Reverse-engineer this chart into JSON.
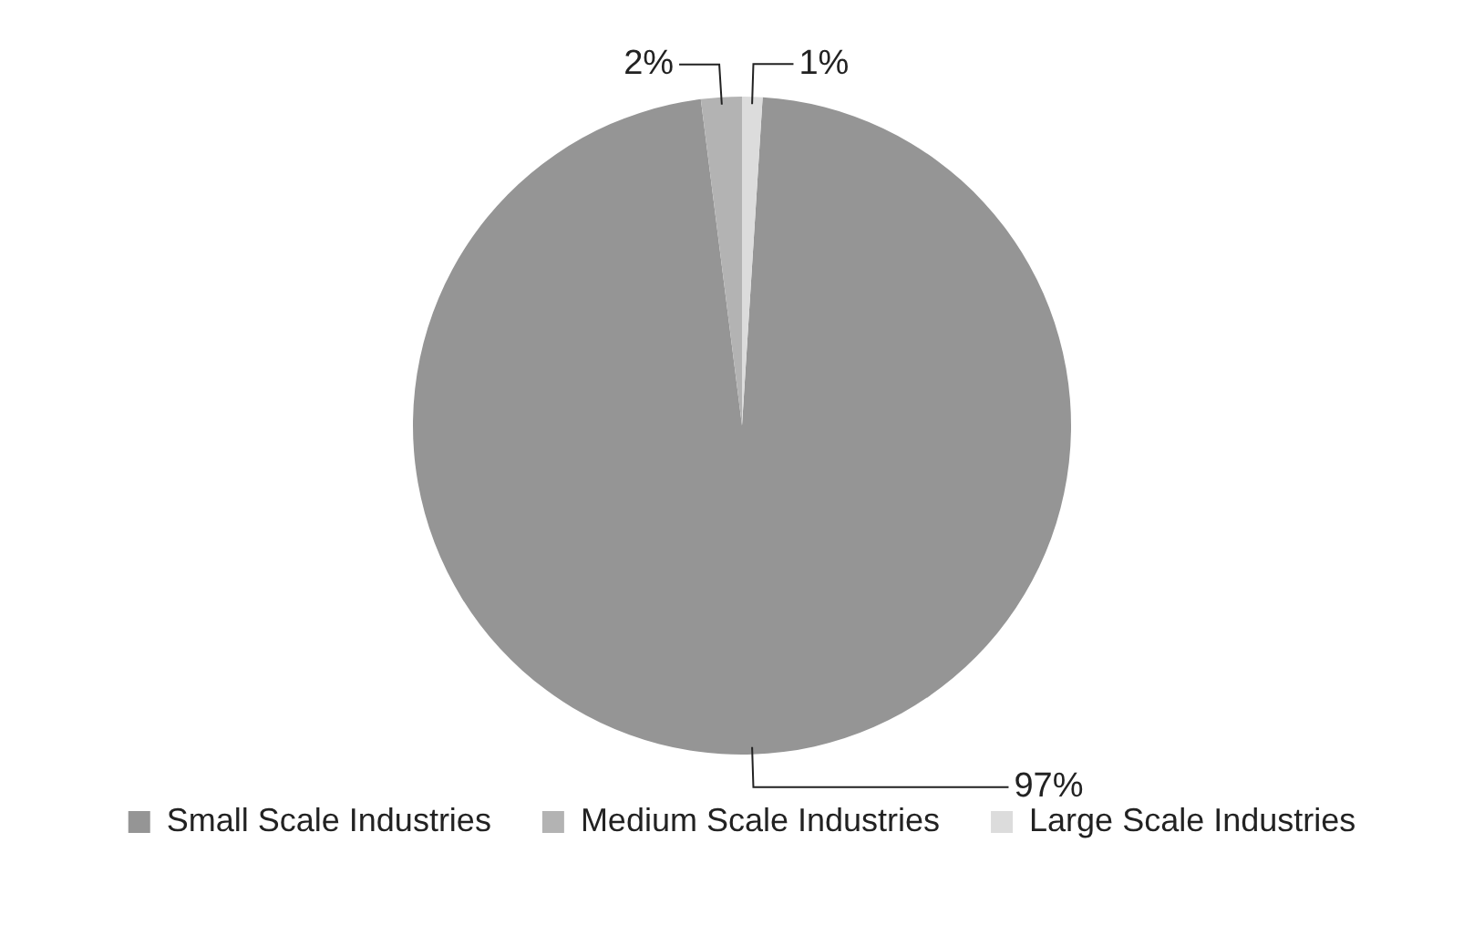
{
  "chart_data": {
    "type": "pie",
    "categories": [
      "Small Scale Industries",
      "Medium Scale Industries",
      "Large Scale Industries"
    ],
    "values": [
      97,
      2,
      1
    ],
    "colors": [
      "#959595",
      "#b3b3b3",
      "#dcdcdc"
    ],
    "value_labels": [
      "97%",
      "2%",
      "1%"
    ],
    "legend": "bottom"
  }
}
